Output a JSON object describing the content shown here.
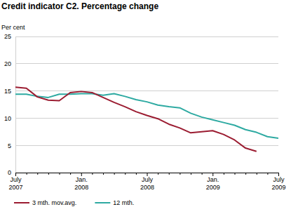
{
  "chart_data": {
    "type": "line",
    "title": "Credit indicator C2. Percentage change",
    "y_label": "Per cent",
    "categories": [
      "July 2007",
      null,
      null,
      null,
      null,
      null,
      "Jan. 2008",
      null,
      null,
      null,
      null,
      null,
      "July 2008",
      null,
      null,
      null,
      null,
      null,
      "Jan. 2009",
      null,
      null,
      null,
      null,
      null,
      "July 2009"
    ],
    "series": [
      {
        "name": "3 mth. mov.avg.",
        "color": "#9b1c31",
        "values": [
          15.7,
          15.5,
          13.9,
          13.3,
          13.2,
          14.7,
          14.9,
          14.7,
          13.8,
          12.9,
          12.1,
          11.2,
          10.5,
          9.9,
          8.9,
          8.2,
          7.3,
          7.5,
          7.7,
          7.0,
          6.0,
          4.5,
          3.9,
          null,
          null
        ]
      },
      {
        "name": "12 mth.",
        "color": "#2eaaa2",
        "values": [
          14.4,
          14.4,
          14.0,
          13.8,
          14.4,
          14.4,
          14.5,
          14.5,
          14.2,
          14.5,
          14.0,
          13.4,
          13.0,
          12.4,
          12.1,
          11.9,
          10.9,
          10.2,
          9.7,
          9.2,
          8.7,
          7.9,
          7.4,
          6.6,
          6.3
        ]
      }
    ],
    "ylim": [
      0,
      25
    ],
    "yticks": [
      0,
      5,
      10,
      15,
      20,
      25
    ],
    "grid": true,
    "legend": "bottom"
  }
}
